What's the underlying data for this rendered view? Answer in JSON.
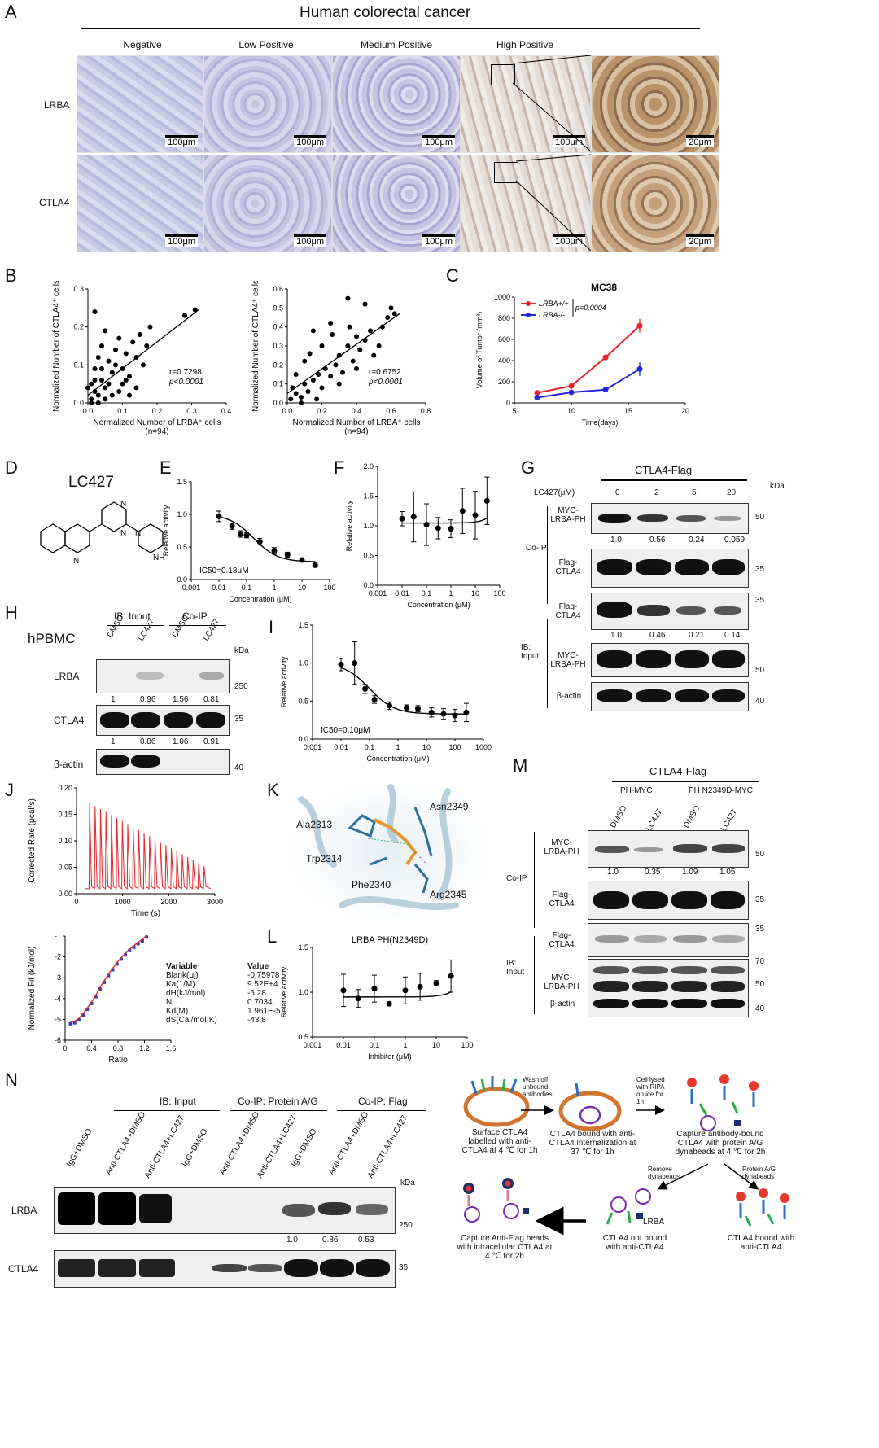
{
  "panels": {
    "A": {
      "letter": "A",
      "title": "Human colorectal cancer",
      "columns": [
        "Negative",
        "Low Positive",
        "Medium Positive",
        "High Positive"
      ],
      "rows": [
        "LRBA",
        "CTLA4"
      ],
      "scale_100": "100μm",
      "scale_20": "20μm"
    },
    "B": {
      "letter": "B"
    },
    "C": {
      "letter": "C"
    },
    "D": {
      "letter": "D",
      "compound": "LC427"
    },
    "E": {
      "letter": "E"
    },
    "F": {
      "letter": "F"
    },
    "G": {
      "letter": "G",
      "header": "CTLA4-Flag",
      "dose_label": "LC427(μM)",
      "doses": [
        "0",
        "2",
        "5",
        "20"
      ],
      "kda": "kDa",
      "group_coip": "Co-IP",
      "group_input": "IB:\nInput",
      "rows": [
        {
          "label": "MYC-\nLRBA-PH",
          "marker": "50",
          "quant": [
            "1.0",
            "0.56",
            "0.24",
            "0.059"
          ]
        },
        {
          "label": "Flag-\nCTLA4",
          "marker": "35"
        },
        {
          "label": "Flag-\nCTLA4",
          "marker": "35",
          "quant": [
            "1.0",
            "0.46",
            "0.21",
            "0.14"
          ]
        },
        {
          "label": "MYC-\nLRBA-PH",
          "marker": "50"
        },
        {
          "label": "β-actin",
          "marker": "40"
        }
      ]
    },
    "H": {
      "letter": "H",
      "cell": "hPBMC",
      "group_input": "IB: Input",
      "group_coip": "Co-IP",
      "lanes": [
        "DMSO",
        "LC427",
        "DMSO",
        "LC427"
      ],
      "kda": "kDa",
      "rows": [
        {
          "label": "LRBA",
          "marker": "250",
          "quant": [
            "1",
            "0.96",
            "1.56",
            "0.81"
          ]
        },
        {
          "label": "CTLA4",
          "marker": "35",
          "quant": [
            "1",
            "0.86",
            "1.06",
            "0.91"
          ]
        },
        {
          "label": "β-actin",
          "marker": "40"
        }
      ]
    },
    "I": {
      "letter": "I"
    },
    "J": {
      "letter": "J",
      "fit_table_header": [
        "Variable",
        "Value"
      ],
      "fit_table": [
        [
          "Blank(μj)",
          "-0.75978"
        ],
        [
          "Ka(1/M)",
          "9.52E+4"
        ],
        [
          "dH(kJ/mol)",
          "-6.28"
        ],
        [
          "N",
          "0.7034"
        ],
        [
          "Kd(M)",
          "1.961E-5"
        ],
        [
          "dS(Cal/mol·K)",
          "-43.8"
        ]
      ]
    },
    "K": {
      "letter": "K",
      "residues": [
        "Ala2313",
        "Asn2349",
        "Trp2314",
        "Phe2340",
        "Arg2345"
      ]
    },
    "L": {
      "letter": "L"
    },
    "M": {
      "letter": "M",
      "header": "CTLA4-Flag",
      "constructs": [
        "PH-MYC",
        "PH N2349D-MYC"
      ],
      "lanes": [
        "DMSO",
        "LC427",
        "DMSO",
        "LC427"
      ],
      "group_coip": "Co-IP",
      "group_input": "IB:\nInput",
      "rows": [
        {
          "label": "MYC-\nLRBA-PH",
          "marker": "50",
          "quant": [
            "1.0",
            "0.35",
            "1.09",
            "1.05"
          ]
        },
        {
          "label": "Flag-\nCTLA4",
          "marker": "35"
        },
        {
          "label": "Flag-\nCTLA4",
          "marker": "35"
        },
        {
          "label": "MYC-\nLRBA-PH",
          "marker": "50"
        },
        {
          "label": "β-actin",
          "marker": "40"
        }
      ],
      "extra_markers": [
        "70",
        "50",
        "40"
      ]
    },
    "N": {
      "letter": "N",
      "groups": [
        "IB: Input",
        "Co-IP: Protein A/G",
        "Co-IP: Flag"
      ],
      "lanes": [
        "IgG+DMSO",
        "Anti-CTLA4+DMSO",
        "Anti-CTLA4+LC427",
        "IgG+DMSO",
        "Anti-CTLA4+DMSO",
        "Anti-CTLA4+LC427",
        "IgG+DMSO",
        "Anti-CTLA4+DMSO",
        "Anti-CTLA4+LC427"
      ],
      "kda": "kDa",
      "rows": [
        {
          "label": "LRBA",
          "marker": "250"
        },
        {
          "label": "CTLA4",
          "marker": "35"
        }
      ],
      "quant": [
        "1.0",
        "0.86",
        "0.53"
      ],
      "schematic": {
        "step1": "Surface CTLA4\nlabelled with anti-\nCTLA4 at 4 ℃ for 1h",
        "arrow1": "Wash off\nunbound\nantibodies",
        "step2": "CTLA4 bound with anti-\nCTLA4 internalization at\n37 ℃ for 1h",
        "arrow2": "Cell lysed\nwith RIPA\non ice for\n1h",
        "step3": "Capture antibody-bound\nCTLA4 with protein A/G\ndynabeads at 4 ℃ for 2h",
        "arrow3a": "Remove\ndynabeads",
        "arrow3b": "Protein A/G\ndynabeads",
        "step4": "CTLA4 not bound\nwith anti-CTLA4",
        "step4_label": "LRBA",
        "step5": "CTLA4 bound with\nanti-CTLA4",
        "step6": "Capture Anti-Flag beads\nwith intracellular CTLA4 at\n4 ℃ for 2h"
      }
    }
  },
  "chart_data": [
    {
      "id": "B1",
      "type": "scatter",
      "xlabel": "Normalized Number of LRBA⁺ cells",
      "ylabel": "Normalized Number of CTLA4⁺ cells",
      "n": "(n=94)",
      "r": "r=0.7298",
      "p": "p<0.0001",
      "xlim": [
        0,
        0.4
      ],
      "ylim": [
        0,
        0.3
      ],
      "xticks": [
        "0.0",
        "0.1",
        "0.2",
        "0.3",
        "0.4"
      ],
      "yticks": [
        "0.0",
        "0.1",
        "0.2",
        "0.3"
      ],
      "fit": [
        [
          0,
          0.02
        ],
        [
          0.32,
          0.245
        ]
      ],
      "points": [
        [
          0.01,
          0.01
        ],
        [
          0.02,
          0.03
        ],
        [
          0.01,
          0.05
        ],
        [
          0.03,
          0.02
        ],
        [
          0.04,
          0.06
        ],
        [
          0.05,
          0.04
        ],
        [
          0.02,
          0.09
        ],
        [
          0.06,
          0.05
        ],
        [
          0.07,
          0.08
        ],
        [
          0.03,
          0.12
        ],
        [
          0.08,
          0.1
        ],
        [
          0.04,
          0.15
        ],
        [
          0.1,
          0.09
        ],
        [
          0.11,
          0.13
        ],
        [
          0.12,
          0.07
        ],
        [
          0.13,
          0.16
        ],
        [
          0.14,
          0.12
        ],
        [
          0.15,
          0.18
        ],
        [
          0.16,
          0.1
        ],
        [
          0.17,
          0.15
        ],
        [
          0.18,
          0.2
        ],
        [
          0.02,
          0.24
        ],
        [
          0.05,
          0.19
        ],
        [
          0.09,
          0.17
        ],
        [
          0.28,
          0.23
        ],
        [
          0.31,
          0.245
        ],
        [
          0.01,
          0.0
        ],
        [
          0.03,
          0.0
        ],
        [
          0.05,
          0.01
        ],
        [
          0.07,
          0.02
        ],
        [
          0.09,
          0.03
        ],
        [
          0.0,
          0.04
        ],
        [
          0.06,
          0.11
        ],
        [
          0.08,
          0.14
        ],
        [
          0.1,
          0.05
        ],
        [
          0.12,
          0.02
        ],
        [
          0.14,
          0.04
        ],
        [
          0.02,
          0.06
        ],
        [
          0.04,
          0.09
        ],
        [
          0.11,
          0.06
        ]
      ]
    },
    {
      "id": "B2",
      "type": "scatter",
      "xlabel": "Normalized Number of LRBA⁺ cells",
      "ylabel": "Normalized Number of CTLA4⁺ cells",
      "n": "(n=94)",
      "r": "r=0.6752",
      "p": "p<0.0001",
      "xlim": [
        0,
        0.8
      ],
      "ylim": [
        0,
        0.6
      ],
      "xticks": [
        "0.0",
        "0.2",
        "0.4",
        "0.6",
        "0.8"
      ],
      "yticks": [
        "0.0",
        "0.1",
        "0.2",
        "0.3",
        "0.4",
        "0.5",
        "0.6"
      ],
      "fit": [
        [
          0,
          0.05
        ],
        [
          0.65,
          0.47
        ]
      ],
      "points": [
        [
          0.02,
          0.02
        ],
        [
          0.05,
          0.05
        ],
        [
          0.08,
          0.03
        ],
        [
          0.1,
          0.1
        ],
        [
          0.12,
          0.06
        ],
        [
          0.15,
          0.12
        ],
        [
          0.18,
          0.15
        ],
        [
          0.2,
          0.08
        ],
        [
          0.22,
          0.18
        ],
        [
          0.25,
          0.14
        ],
        [
          0.28,
          0.2
        ],
        [
          0.3,
          0.25
        ],
        [
          0.32,
          0.16
        ],
        [
          0.35,
          0.3
        ],
        [
          0.38,
          0.22
        ],
        [
          0.4,
          0.35
        ],
        [
          0.42,
          0.28
        ],
        [
          0.45,
          0.33
        ],
        [
          0.5,
          0.25
        ],
        [
          0.55,
          0.4
        ],
        [
          0.58,
          0.45
        ],
        [
          0.6,
          0.5
        ],
        [
          0.62,
          0.47
        ],
        [
          0.35,
          0.55
        ],
        [
          0.45,
          0.52
        ],
        [
          0.25,
          0.42
        ],
        [
          0.15,
          0.38
        ],
        [
          0.05,
          0.15
        ],
        [
          0.1,
          0.22
        ],
        [
          0.3,
          0.1
        ],
        [
          0.2,
          0.3
        ],
        [
          0.26,
          0.36
        ],
        [
          0.4,
          0.18
        ],
        [
          0.48,
          0.38
        ],
        [
          0.53,
          0.3
        ],
        [
          0.08,
          0.0
        ],
        [
          0.17,
          0.02
        ],
        [
          0.03,
          0.08
        ],
        [
          0.13,
          0.26
        ],
        [
          0.36,
          0.4
        ]
      ]
    },
    {
      "id": "C",
      "type": "line",
      "title": "MC38",
      "xlabel": "Time(days)",
      "ylabel": "Volume of Tumor (mm³)",
      "xlim": [
        5,
        20
      ],
      "ylim": [
        0,
        1000
      ],
      "xticks": [
        "5",
        "10",
        "15",
        "20"
      ],
      "yticks": [
        "0",
        "200",
        "400",
        "600",
        "800",
        "1000"
      ],
      "p": "p=0.0004",
      "series": [
        {
          "name": "LRBA+/+",
          "color": "#e8252a",
          "x": [
            7,
            10,
            13,
            16
          ],
          "y": [
            95,
            160,
            430,
            730
          ],
          "err": [
            10,
            15,
            30,
            65
          ]
        },
        {
          "name": "LRBA-/-",
          "color": "#2626d9",
          "x": [
            7,
            10,
            13,
            16
          ],
          "y": [
            50,
            100,
            125,
            320
          ],
          "err": [
            8,
            10,
            25,
            65
          ]
        }
      ]
    },
    {
      "id": "E",
      "type": "scatter",
      "xlabel": "Concentration (μM)",
      "ylabel": "Relative activity",
      "annotation": "IC50=0.18μM",
      "xlim": [
        0.001,
        100
      ],
      "ylim": [
        0,
        1.5
      ],
      "xticks": [
        "0.001",
        "0.01",
        "0.1",
        "1",
        "10",
        "100"
      ],
      "yticks": [
        "0.0",
        "0.5",
        "1.0",
        "1.5"
      ],
      "x": [
        0.01,
        0.03,
        0.06,
        0.1,
        0.3,
        1,
        3,
        10,
        30
      ],
      "y": [
        0.97,
        0.82,
        0.7,
        0.68,
        0.58,
        0.44,
        0.38,
        0.3,
        0.22
      ],
      "err": [
        0.08,
        0.05,
        0.05,
        0.04,
        0.05,
        0.05,
        0.04,
        0.03,
        0.03
      ],
      "fit": "sigmoid",
      "top": 1.0,
      "bottom": 0.27,
      "ic50": 0.18
    },
    {
      "id": "F",
      "type": "scatter",
      "xlabel": "Concentration (μM)",
      "ylabel": "Relative activity",
      "xlim": [
        0.001,
        100
      ],
      "ylim": [
        0,
        2.0
      ],
      "xticks": [
        "0.001",
        "0.01",
        "0.1",
        "1",
        "10",
        "100"
      ],
      "yticks": [
        "0.0",
        "0.5",
        "1.0",
        "1.5",
        "2.0"
      ],
      "x": [
        0.01,
        0.03,
        0.1,
        0.3,
        1,
        3,
        10,
        30
      ],
      "y": [
        1.12,
        1.15,
        1.02,
        0.96,
        0.95,
        1.25,
        1.18,
        1.42
      ],
      "err": [
        0.12,
        0.42,
        0.35,
        0.18,
        0.15,
        0.38,
        0.4,
        0.4
      ],
      "fit": "flat_rise"
    },
    {
      "id": "I",
      "type": "scatter",
      "xlabel": "Concentration (μM)",
      "ylabel": "Relative activity",
      "annotation": "IC50=0.10μM",
      "xlim": [
        0.001,
        1000
      ],
      "ylim": [
        0,
        1.5
      ],
      "xticks": [
        "0.001",
        "0.01",
        "0.1",
        "1",
        "10",
        "100",
        "1000"
      ],
      "yticks": [
        "0.0",
        "0.5",
        "1.0",
        "1.5"
      ],
      "x": [
        0.01,
        0.03,
        0.07,
        0.15,
        0.5,
        2,
        5,
        15,
        40,
        100,
        250
      ],
      "y": [
        0.98,
        1.0,
        0.66,
        0.52,
        0.44,
        0.41,
        0.4,
        0.35,
        0.33,
        0.31,
        0.35
      ],
      "err": [
        0.08,
        0.28,
        0.06,
        0.05,
        0.05,
        0.04,
        0.04,
        0.06,
        0.07,
        0.08,
        0.12
      ],
      "fit": "sigmoid",
      "top": 1.0,
      "bottom": 0.33,
      "ic50": 0.1
    },
    {
      "id": "J1",
      "type": "line",
      "xlabel": "Time (s)",
      "ylabel": "Corrected Rate (μcal/s)",
      "xlim": [
        -200,
        3100
      ],
      "ylim": [
        -0.01,
        0.2
      ],
      "xticks": [
        "0",
        "1000",
        "2000",
        "3000"
      ],
      "yticks": [
        "0.00",
        "0.05",
        "0.10",
        "0.15",
        "0.20"
      ],
      "injections": 22,
      "first_peak": 0.17,
      "last_peak": 0.045,
      "interval_s": 130
    },
    {
      "id": "J2",
      "type": "scatter",
      "xlabel": "Ratio",
      "ylabel": "Normalized Fit (kJ/mol)",
      "xlim": [
        0,
        2.0
      ],
      "ylim": [
        -6.2,
        -0.8
      ],
      "xticks": [
        "0",
        "0.4",
        "0.8",
        "1.2",
        "1.6"
      ],
      "yticks": [
        "-6",
        "-5",
        "-4",
        "-3",
        "-2",
        "-1"
      ],
      "x": [
        0.1,
        0.18,
        0.26,
        0.34,
        0.42,
        0.5,
        0.58,
        0.66,
        0.74,
        0.82,
        0.9,
        0.98,
        1.06,
        1.14,
        1.22,
        1.3,
        1.38,
        1.46,
        1.54
      ],
      "y": [
        -5.35,
        -5.3,
        -5.15,
        -4.9,
        -4.6,
        -4.3,
        -3.95,
        -3.55,
        -3.2,
        -2.85,
        -2.55,
        -2.25,
        -2.0,
        -1.78,
        -1.55,
        -1.38,
        -1.2,
        -1.05,
        -0.85
      ]
    },
    {
      "id": "L",
      "type": "scatter",
      "title": "LRBA PH(N2349D)",
      "xlabel": "Inhibitor (μM)",
      "ylabel": "Relative activity",
      "xlim": [
        0.001,
        100
      ],
      "ylim": [
        0.5,
        1.5
      ],
      "xticks": [
        "0.001",
        "0.01",
        "0.1",
        "1",
        "10",
        "100"
      ],
      "yticks": [
        "0.5",
        "1.0",
        "1.5"
      ],
      "x": [
        0.01,
        0.03,
        0.1,
        0.3,
        1,
        3,
        10,
        30
      ],
      "y": [
        1.02,
        0.93,
        1.04,
        0.87,
        1.02,
        1.06,
        1.1,
        1.18
      ],
      "err": [
        0.18,
        0.1,
        0.15,
        0.02,
        0.15,
        0.15,
        0.03,
        0.18
      ],
      "fit": "flat_rise"
    }
  ]
}
